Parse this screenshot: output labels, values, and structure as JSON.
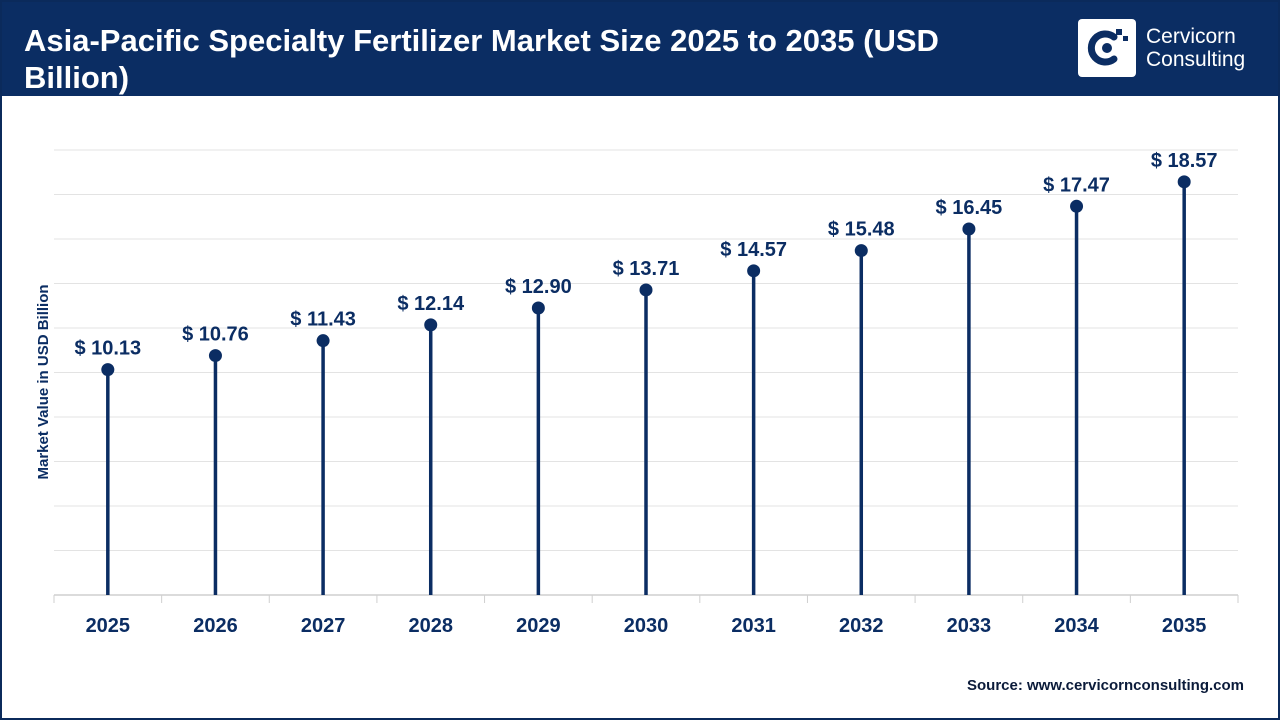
{
  "header": {
    "title": "Asia-Pacific Specialty Fertilizer Market Size 2025 to 2035 (USD Billion)",
    "logo_line1": "Cervicorn",
    "logo_line2": "Consulting"
  },
  "source": "Source: www.cervicornconsulting.com",
  "colors": {
    "header_bg": "#0b2d63",
    "series": "#0b2d63",
    "grid": "#e3e3e3"
  },
  "chart_data": {
    "type": "lollipop",
    "title": "Asia-Pacific Specialty Fertilizer Market Size 2025 to 2035 (USD Billion)",
    "xlabel": "",
    "ylabel": "Market Value in USD Billion",
    "categories": [
      "2025",
      "2026",
      "2027",
      "2028",
      "2029",
      "2030",
      "2031",
      "2032",
      "2033",
      "2034",
      "2035"
    ],
    "values": [
      10.13,
      10.76,
      11.43,
      12.14,
      12.9,
      13.71,
      14.57,
      15.48,
      16.45,
      17.47,
      18.57
    ],
    "value_labels": [
      "$ 10.13",
      "$ 10.76",
      "$ 11.43",
      "$ 12.14",
      "$ 12.90",
      "$ 13.71",
      "$ 14.57",
      "$ 15.48",
      "$ 16.45",
      "$ 17.47",
      "$ 18.57"
    ],
    "grid": true,
    "y_tick_labels_shown": false,
    "legend": "none"
  }
}
